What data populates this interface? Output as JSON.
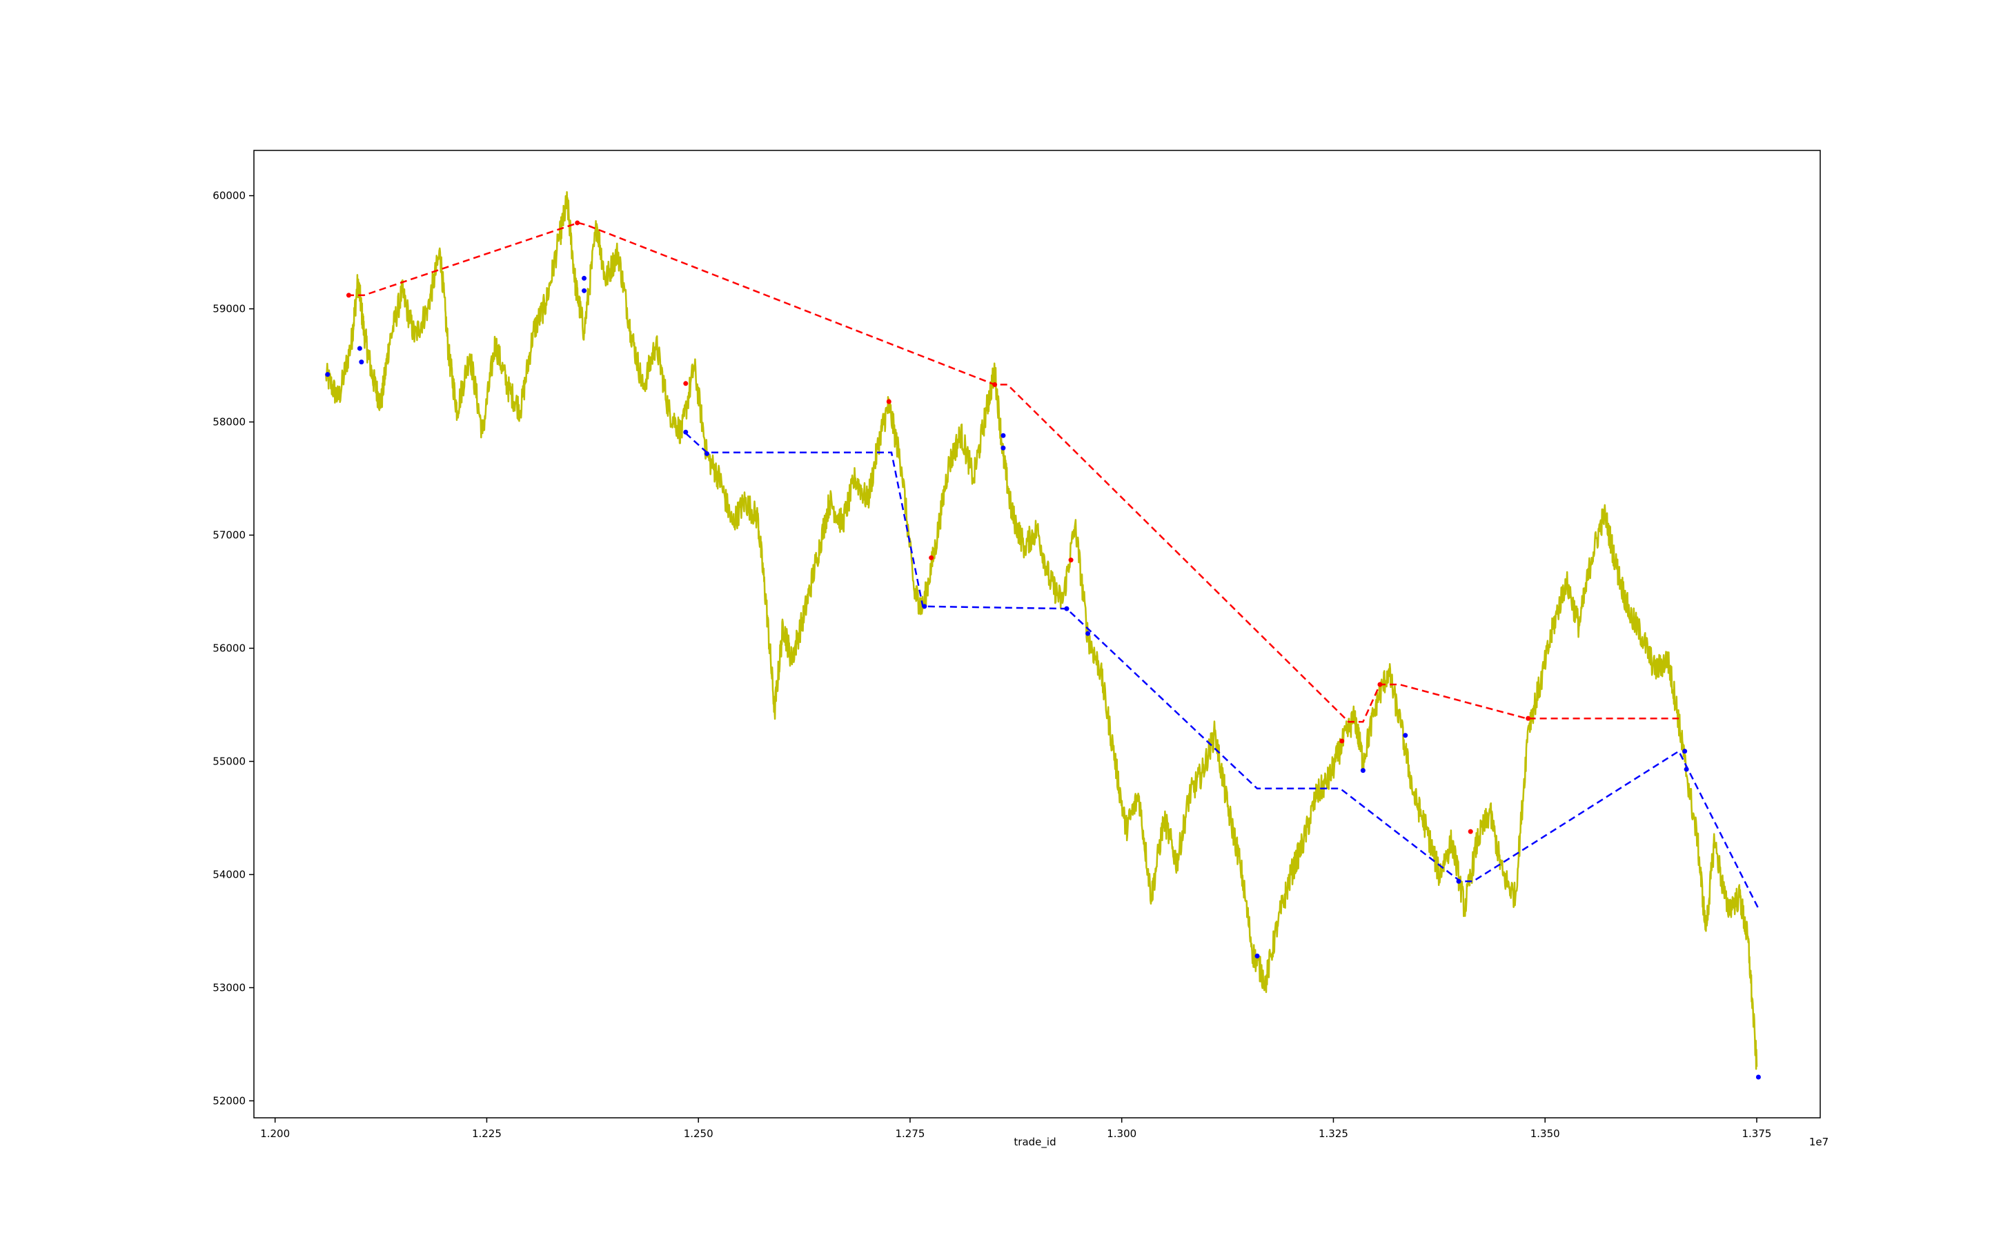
{
  "chart_data": {
    "type": "line",
    "xlabel": "trade_id",
    "x_offset_label": "1e7",
    "xlim": [
      1.1975,
      1.3825
    ],
    "ylim": [
      51850,
      60400
    ],
    "x_ticks": [
      "1.200",
      "1.225",
      "1.250",
      "1.275",
      "1.300",
      "1.325",
      "1.350",
      "1.375"
    ],
    "y_ticks": [
      "52000",
      "53000",
      "54000",
      "55000",
      "56000",
      "57000",
      "58000",
      "59000",
      "60000"
    ],
    "grid": false,
    "legend": "none",
    "colors": {
      "price": "#bfbf00",
      "resistance": "#ff0000",
      "support": "#0000ff",
      "sell_marker": "#ff0000",
      "buy_marker": "#0000ff"
    },
    "series": [
      {
        "kind": "price",
        "style": "solid",
        "points": [
          [
            1.206,
            58420
          ],
          [
            1.2075,
            58200
          ],
          [
            1.209,
            58700
          ],
          [
            1.2098,
            59250
          ],
          [
            1.2105,
            58800
          ],
          [
            1.2115,
            58400
          ],
          [
            1.2125,
            58150
          ],
          [
            1.2135,
            58700
          ],
          [
            1.215,
            59150
          ],
          [
            1.2165,
            58750
          ],
          [
            1.218,
            59000
          ],
          [
            1.2195,
            59500
          ],
          [
            1.2205,
            58600
          ],
          [
            1.2215,
            58100
          ],
          [
            1.223,
            58600
          ],
          [
            1.2245,
            57900
          ],
          [
            1.226,
            58700
          ],
          [
            1.2275,
            58300
          ],
          [
            1.229,
            58100
          ],
          [
            1.2305,
            58800
          ],
          [
            1.232,
            59050
          ],
          [
            1.2335,
            59600
          ],
          [
            1.2345,
            59950
          ],
          [
            1.2355,
            59200
          ],
          [
            1.2365,
            58800
          ],
          [
            1.238,
            59750
          ],
          [
            1.239,
            59250
          ],
          [
            1.2405,
            59500
          ],
          [
            1.242,
            58800
          ],
          [
            1.2435,
            58300
          ],
          [
            1.245,
            58700
          ],
          [
            1.2465,
            58100
          ],
          [
            1.248,
            57900
          ],
          [
            1.2495,
            58500
          ],
          [
            1.251,
            57700
          ],
          [
            1.2525,
            57500
          ],
          [
            1.254,
            57100
          ],
          [
            1.2555,
            57300
          ],
          [
            1.257,
            57150
          ],
          [
            1.258,
            56400
          ],
          [
            1.259,
            55450
          ],
          [
            1.26,
            56200
          ],
          [
            1.261,
            55900
          ],
          [
            1.2625,
            56300
          ],
          [
            1.264,
            56800
          ],
          [
            1.2655,
            57300
          ],
          [
            1.267,
            57100
          ],
          [
            1.2685,
            57500
          ],
          [
            1.27,
            57300
          ],
          [
            1.2715,
            57900
          ],
          [
            1.2725,
            58150
          ],
          [
            1.274,
            57600
          ],
          [
            1.2755,
            56500
          ],
          [
            1.2765,
            56350
          ],
          [
            1.278,
            56900
          ],
          [
            1.2795,
            57600
          ],
          [
            1.281,
            57900
          ],
          [
            1.2825,
            57500
          ],
          [
            1.284,
            58100
          ],
          [
            1.285,
            58450
          ],
          [
            1.286,
            57700
          ],
          [
            1.287,
            57200
          ],
          [
            1.2885,
            56900
          ],
          [
            1.29,
            57050
          ],
          [
            1.2915,
            56600
          ],
          [
            1.293,
            56400
          ],
          [
            1.2945,
            57100
          ],
          [
            1.296,
            56100
          ],
          [
            1.2975,
            55800
          ],
          [
            1.299,
            55100
          ],
          [
            1.3005,
            54400
          ],
          [
            1.302,
            54700
          ],
          [
            1.3035,
            53800
          ],
          [
            1.305,
            54500
          ],
          [
            1.3065,
            54100
          ],
          [
            1.308,
            54700
          ],
          [
            1.3095,
            54900
          ],
          [
            1.311,
            55250
          ],
          [
            1.3125,
            54600
          ],
          [
            1.314,
            54100
          ],
          [
            1.3155,
            53300
          ],
          [
            1.317,
            53050
          ],
          [
            1.3185,
            53600
          ],
          [
            1.32,
            54000
          ],
          [
            1.3215,
            54300
          ],
          [
            1.323,
            54700
          ],
          [
            1.3245,
            54850
          ],
          [
            1.326,
            55150
          ],
          [
            1.3275,
            55400
          ],
          [
            1.3285,
            55000
          ],
          [
            1.33,
            55500
          ],
          [
            1.3315,
            55800
          ],
          [
            1.333,
            55300
          ],
          [
            1.3345,
            54700
          ],
          [
            1.336,
            54400
          ],
          [
            1.3375,
            54000
          ],
          [
            1.339,
            54300
          ],
          [
            1.3405,
            53700
          ],
          [
            1.342,
            54300
          ],
          [
            1.3435,
            54550
          ],
          [
            1.345,
            54000
          ],
          [
            1.3465,
            53800
          ],
          [
            1.348,
            55300
          ],
          [
            1.3495,
            55700
          ],
          [
            1.351,
            56200
          ],
          [
            1.3525,
            56600
          ],
          [
            1.354,
            56200
          ],
          [
            1.3555,
            56800
          ],
          [
            1.357,
            57200
          ],
          [
            1.3585,
            56700
          ],
          [
            1.36,
            56300
          ],
          [
            1.3615,
            56100
          ],
          [
            1.363,
            55800
          ],
          [
            1.3645,
            55900
          ],
          [
            1.3655,
            55500
          ],
          [
            1.3665,
            55000
          ],
          [
            1.368,
            54300
          ],
          [
            1.369,
            53500
          ],
          [
            1.37,
            54300
          ],
          [
            1.3715,
            53700
          ],
          [
            1.373,
            53800
          ],
          [
            1.374,
            53400
          ],
          [
            1.375,
            52300
          ]
        ]
      },
      {
        "kind": "resistance",
        "style": "dashed",
        "points": [
          [
            1.2085,
            59120
          ],
          [
            1.2105,
            59120
          ],
          [
            1.2358,
            59760
          ],
          [
            1.2368,
            59740
          ],
          [
            1.285,
            58330
          ],
          [
            1.2865,
            58330
          ],
          [
            1.3268,
            55350
          ],
          [
            1.3285,
            55350
          ],
          [
            1.3305,
            55680
          ],
          [
            1.3328,
            55680
          ],
          [
            1.3478,
            55380
          ],
          [
            1.3658,
            55380
          ]
        ]
      },
      {
        "kind": "support",
        "style": "dashed",
        "points": [
          [
            1.2485,
            57900
          ],
          [
            1.251,
            57730
          ],
          [
            1.2728,
            57730
          ],
          [
            1.2765,
            56370
          ],
          [
            1.2935,
            56350
          ],
          [
            1.316,
            54760
          ],
          [
            1.3258,
            54760
          ],
          [
            1.34,
            53940
          ],
          [
            1.3415,
            53940
          ],
          [
            1.3658,
            55090
          ],
          [
            1.3752,
            53700
          ]
        ]
      }
    ],
    "markers": {
      "sell": [
        [
          1.2087,
          59120
        ],
        [
          1.2357,
          59760
        ],
        [
          1.2485,
          58340
        ],
        [
          1.2725,
          58180
        ],
        [
          1.2775,
          56800
        ],
        [
          1.285,
          58330
        ],
        [
          1.294,
          56780
        ],
        [
          1.326,
          55180
        ],
        [
          1.3305,
          55680
        ],
        [
          1.3412,
          54380
        ],
        [
          1.348,
          55380
        ]
      ],
      "buy": [
        [
          1.2062,
          58420
        ],
        [
          1.21,
          58650
        ],
        [
          1.2102,
          58530
        ],
        [
          1.2365,
          59270
        ],
        [
          1.2365,
          59160
        ],
        [
          1.2485,
          57910
        ],
        [
          1.251,
          57720
        ],
        [
          1.2767,
          56370
        ],
        [
          1.286,
          57880
        ],
        [
          1.286,
          57770
        ],
        [
          1.2935,
          56350
        ],
        [
          1.296,
          56130
        ],
        [
          1.316,
          53280
        ],
        [
          1.3285,
          54920
        ],
        [
          1.3335,
          55230
        ],
        [
          1.3398,
          53940
        ],
        [
          1.3665,
          55090
        ],
        [
          1.3667,
          54930
        ],
        [
          1.3752,
          52210
        ]
      ]
    }
  }
}
